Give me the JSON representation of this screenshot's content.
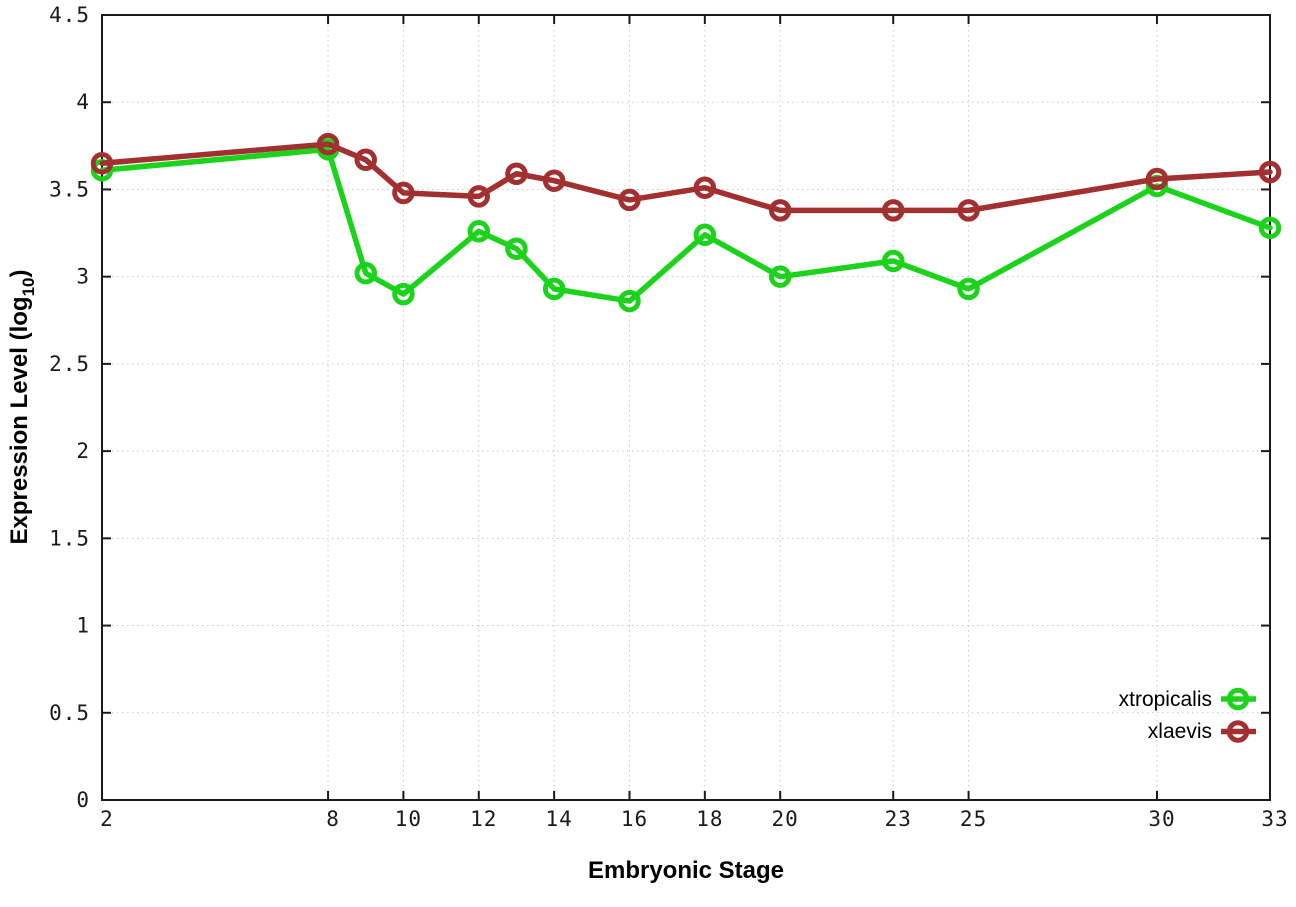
{
  "chart_data": {
    "type": "line",
    "title": "",
    "xlabel": "Embryonic Stage",
    "ylabel": "Expression Level (log10)",
    "ylabel_parts": {
      "main": "Expression Level (log",
      "sub": "10",
      "end": ")"
    },
    "xlim": [
      2,
      33
    ],
    "ylim": [
      0,
      4.5
    ],
    "x_ticks": [
      2,
      8,
      10,
      12,
      14,
      16,
      18,
      20,
      23,
      25,
      30,
      33
    ],
    "x_tick_labels": [
      "2",
      "8",
      "10",
      "12",
      "14",
      "16",
      "18",
      "20",
      "23",
      "25",
      "30",
      "33"
    ],
    "y_ticks": [
      0,
      0.5,
      1,
      1.5,
      2,
      2.5,
      3,
      3.5,
      4,
      4.5
    ],
    "y_tick_labels": [
      "0",
      "0.5",
      "1",
      "1.5",
      "2",
      "2.5",
      "3",
      "3.5",
      "4",
      "4.5"
    ],
    "grid": true,
    "legend_position": "inside-bottom-right",
    "x": [
      2,
      8,
      9,
      10,
      12,
      13,
      14,
      16,
      18,
      20,
      23,
      25,
      30,
      33
    ],
    "series": [
      {
        "name": "xtropicalis",
        "color": "#1bd31b",
        "marker": "open-circle",
        "values": [
          3.61,
          3.73,
          3.02,
          2.9,
          3.26,
          3.16,
          2.93,
          2.86,
          3.24,
          3.0,
          3.09,
          2.93,
          3.52,
          3.28
        ]
      },
      {
        "name": "xlaevis",
        "color": "#a23030",
        "marker": "open-circle",
        "values": [
          3.65,
          3.76,
          3.67,
          3.48,
          3.46,
          3.59,
          3.55,
          3.44,
          3.51,
          3.38,
          3.38,
          3.38,
          3.56,
          3.6
        ]
      }
    ]
  },
  "style": {
    "background": "#ffffff",
    "grid_color": "#c8c8c8",
    "axis_color": "#1a1a1a",
    "tick_label_color": "#1a1a1a"
  }
}
